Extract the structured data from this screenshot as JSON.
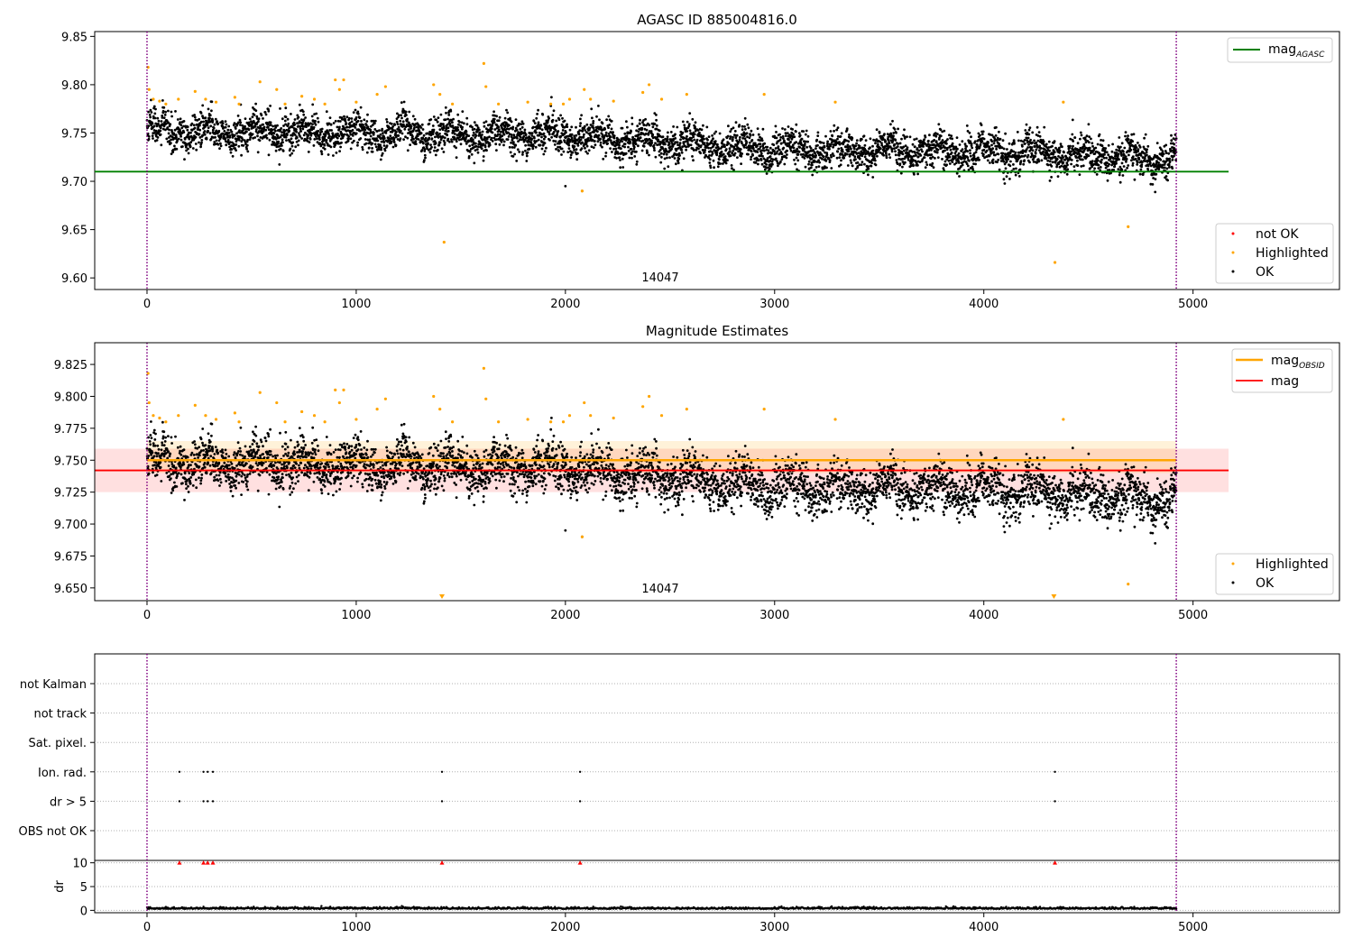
{
  "chart_data": [
    {
      "type": "scatter",
      "title": "AGASC ID 885004816.0",
      "annotation": "14047",
      "xlim": [
        -250,
        5700
      ],
      "ylim": [
        9.588,
        9.855
      ],
      "x_ticks": [
        0,
        1000,
        2000,
        3000,
        4000,
        5000
      ],
      "y_ticks": [
        9.6,
        9.65,
        9.7,
        9.75,
        9.8,
        9.85
      ],
      "vlines": [
        0,
        4920
      ],
      "hline": {
        "name": "mag_AGASC",
        "label_main": "mag",
        "label_sub": "AGASC",
        "value": 9.71,
        "x_range": [
          -250,
          5170
        ],
        "color": "#008000"
      },
      "legend_series": [
        {
          "name": "not OK",
          "color": "#ff0000"
        },
        {
          "name": "Highlighted",
          "color": "#ffa500"
        },
        {
          "name": "OK",
          "color": "#000000"
        }
      ],
      "series": [
        {
          "name": "OK",
          "color": "#000000",
          "n_points": 4920,
          "x_range": [
            0,
            4920
          ],
          "trend": [
            [
              0,
              9.753
            ],
            [
              1000,
              9.75
            ],
            [
              2000,
              9.748
            ],
            [
              3000,
              9.733
            ],
            [
              4000,
              9.732
            ],
            [
              4920,
              9.723
            ]
          ],
          "scatter_sd": 0.012
        },
        {
          "name": "Highlighted",
          "color": "#ffa500",
          "points": [
            [
              5,
              9.818
            ],
            [
              10,
              9.795
            ],
            [
              30,
              9.785
            ],
            [
              60,
              9.783
            ],
            [
              90,
              9.78
            ],
            [
              150,
              9.785
            ],
            [
              230,
              9.793
            ],
            [
              280,
              9.785
            ],
            [
              330,
              9.782
            ],
            [
              420,
              9.787
            ],
            [
              440,
              9.78
            ],
            [
              540,
              9.803
            ],
            [
              620,
              9.795
            ],
            [
              660,
              9.78
            ],
            [
              740,
              9.788
            ],
            [
              800,
              9.785
            ],
            [
              850,
              9.78
            ],
            [
              900,
              9.805
            ],
            [
              920,
              9.795
            ],
            [
              940,
              9.805
            ],
            [
              1000,
              9.782
            ],
            [
              1100,
              9.79
            ],
            [
              1140,
              9.798
            ],
            [
              1370,
              9.8
            ],
            [
              1400,
              9.79
            ],
            [
              1420,
              9.637
            ],
            [
              1460,
              9.78
            ],
            [
              1610,
              9.822
            ],
            [
              1620,
              9.798
            ],
            [
              1680,
              9.78
            ],
            [
              1820,
              9.782
            ],
            [
              1930,
              9.78
            ],
            [
              1990,
              9.78
            ],
            [
              2020,
              9.785
            ],
            [
              2080,
              9.69
            ],
            [
              2090,
              9.795
            ],
            [
              2120,
              9.785
            ],
            [
              2230,
              9.783
            ],
            [
              2370,
              9.792
            ],
            [
              2400,
              9.8
            ],
            [
              2460,
              9.785
            ],
            [
              2580,
              9.79
            ],
            [
              2950,
              9.79
            ],
            [
              3290,
              9.782
            ],
            [
              4340,
              9.616
            ],
            [
              4380,
              9.782
            ],
            [
              4690,
              9.653
            ]
          ]
        },
        {
          "name": "OK outliers",
          "color": "#000000",
          "points": [
            [
              2000,
              9.695
            ],
            [
              2080,
              9.69
            ]
          ]
        }
      ]
    },
    {
      "type": "scatter",
      "title": "Magnitude Estimates",
      "annotation": "14047",
      "xlim": [
        -250,
        5700
      ],
      "ylim": [
        9.64,
        9.842
      ],
      "x_ticks": [
        0,
        1000,
        2000,
        3000,
        4000,
        5000
      ],
      "y_ticks": [
        9.65,
        9.675,
        9.7,
        9.725,
        9.75,
        9.775,
        9.8,
        9.825
      ],
      "y_tick_labels": [
        "9.650",
        "9.675",
        "9.700",
        "9.725",
        "9.750",
        "9.775",
        "9.800",
        "9.825"
      ],
      "vlines": [
        0,
        4920
      ],
      "lines": [
        {
          "name": "mag_OBSID",
          "label_main": "mag",
          "label_sub": "OBSID",
          "color": "#ffa500",
          "value": 9.75,
          "x_range": [
            0,
            4920
          ],
          "band": [
            9.74,
            9.765
          ]
        },
        {
          "name": "mag",
          "label_main": "mag",
          "label_sub": "",
          "color": "#ff0000",
          "value": 9.742,
          "x_range": [
            -250,
            5170
          ],
          "band": [
            9.725,
            9.759
          ]
        }
      ],
      "legend_series": [
        {
          "name": "Highlighted",
          "color": "#ffa500"
        },
        {
          "name": "OK",
          "color": "#000000"
        }
      ],
      "offscale_markers": [
        {
          "x": 1410,
          "color": "#ffa500"
        },
        {
          "x": 4335,
          "color": "#ffa500"
        }
      ]
    },
    {
      "type": "scatter",
      "title": "",
      "xlim": [
        -250,
        5700
      ],
      "x_ticks": [
        0,
        1000,
        2000,
        3000,
        4000,
        5000
      ],
      "vlines": [
        0,
        4920
      ],
      "flag_rows": [
        "OBS not OK",
        "dr > 5",
        "Ion. rad.",
        "Sat. pixel.",
        "not track",
        "not Kalman"
      ],
      "flag_points": {
        "Ion. rad.": [
          155,
          270,
          290,
          315,
          1410,
          2070,
          4340
        ],
        "dr > 5": [
          155,
          270,
          290,
          315,
          1410,
          2070,
          4340
        ]
      },
      "dr_panel": {
        "ylabel": "dr",
        "ylim": [
          -0.5,
          10.5
        ],
        "y_ticks": [
          0,
          5,
          10
        ],
        "baseline_value": 0.3,
        "spikes_x": [
          155,
          270,
          290,
          315,
          1410,
          2070,
          4340
        ],
        "spike_value": 10,
        "spike_color": "#ff0000"
      }
    }
  ]
}
